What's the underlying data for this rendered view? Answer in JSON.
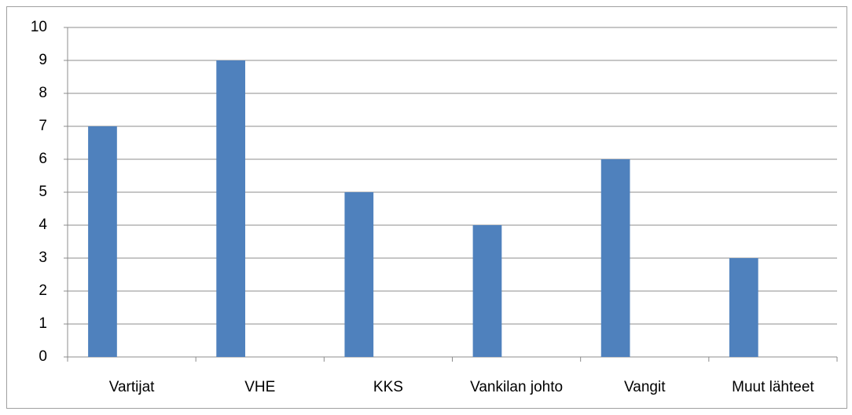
{
  "chart_data": {
    "type": "bar",
    "categories": [
      "Vartijat",
      "VHE",
      "KKS",
      "Vankilan johto",
      "Vangit",
      "Muut lähteet"
    ],
    "values": [
      7,
      9,
      5,
      4,
      6,
      3
    ],
    "color": "#4f81bd",
    "ylim": [
      0,
      10
    ],
    "yticks": [
      0,
      1,
      2,
      3,
      4,
      5,
      6,
      7,
      8,
      9,
      10
    ],
    "grid": true
  }
}
